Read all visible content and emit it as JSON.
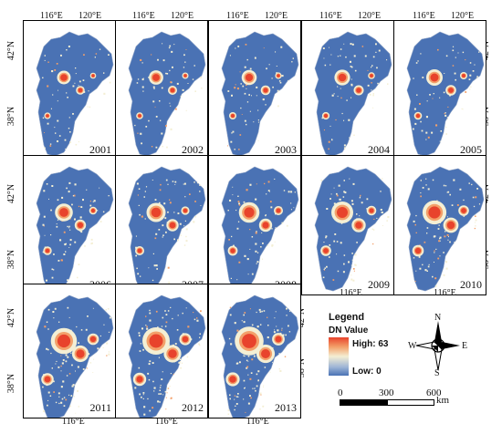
{
  "panels": [
    {
      "year": "2001",
      "level": 1.0
    },
    {
      "year": "2002",
      "level": 1.05
    },
    {
      "year": "2003",
      "level": 1.1
    },
    {
      "year": "2004",
      "level": 1.15
    },
    {
      "year": "2005",
      "level": 1.2
    },
    {
      "year": "2006",
      "level": 1.3
    },
    {
      "year": "2007",
      "level": 1.4
    },
    {
      "year": "2008",
      "level": 1.5
    },
    {
      "year": "2009",
      "level": 1.6
    },
    {
      "year": "2010",
      "level": 1.75
    },
    {
      "year": "2011",
      "level": 1.9
    },
    {
      "year": "2012",
      "level": 2.0
    },
    {
      "year": "2013",
      "level": 2.1
    }
  ],
  "axes": {
    "lon_left": "116°E",
    "lon_right": "120°E",
    "lat_top": "42°N",
    "lat_bottom": "38°N"
  },
  "legend": {
    "title": "Legend",
    "subtitle": "DN Value",
    "high_label": "High: 63",
    "low_label": "Low: 0",
    "colors": {
      "high": "#e8432c",
      "mid": "#f4efd4",
      "low": "#4a72b4"
    }
  },
  "scale_bar": {
    "labels": [
      "0",
      "300",
      "600"
    ],
    "unit": "km"
  },
  "compass": {
    "n": "N",
    "s": "S",
    "e": "E",
    "w": "W"
  },
  "colors": {
    "region": "#4a72b4",
    "urban_high": "#e8432c",
    "urban_mid": "#f3a06a",
    "urban_low": "#f4efd4"
  }
}
